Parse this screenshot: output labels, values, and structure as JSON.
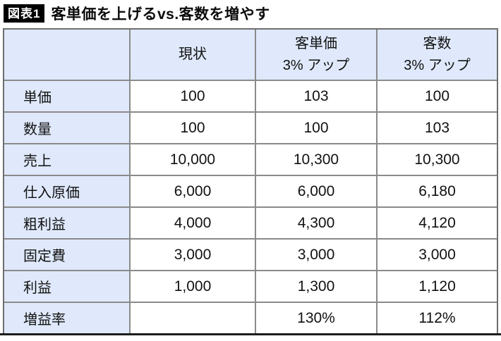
{
  "title": {
    "badge": "図表1",
    "text": "客単価を上げるvs.客数を増やす"
  },
  "colors": {
    "header_bg": "#dfe9fb",
    "grid_border": "#8a8a8a",
    "outer_border": "#6e6e6e",
    "bottom_rule": "#1c1c1c",
    "badge_bg": "#000000",
    "badge_text": "#ffffff"
  },
  "chart_data": {
    "type": "table",
    "figure_label": "図表1",
    "title": "客単価を上げるvs.客数を増やす",
    "headers": [
      [
        "",
        ""
      ],
      [
        "現状",
        ""
      ],
      [
        "客単価",
        "3% アップ"
      ],
      [
        "客数",
        "3% アップ"
      ]
    ],
    "rows": [
      [
        "単価",
        "100",
        "103",
        "100"
      ],
      [
        "数量",
        "100",
        "100",
        "103"
      ],
      [
        "売上",
        "10,000",
        "10,300",
        "10,300"
      ],
      [
        "仕入原価",
        "6,000",
        "6,000",
        "6,180"
      ],
      [
        "粗利益",
        "4,000",
        "4,300",
        "4,120"
      ],
      [
        "固定費",
        "3,000",
        "3,000",
        "3,000"
      ],
      [
        "利益",
        "1,000",
        "1,300",
        "1,120"
      ],
      [
        "増益率",
        "",
        "130%",
        "112%"
      ]
    ]
  }
}
